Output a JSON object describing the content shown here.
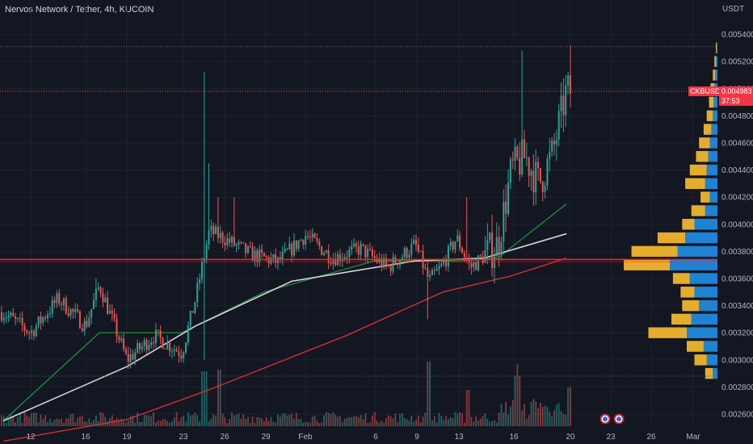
{
  "header": {
    "title": "Nervos Network / Tether, 4h, KUCOIN"
  },
  "axis": {
    "currency": "USDT",
    "y_ticks": [
      "0.005400",
      "0.005200",
      "0.005000",
      "0.004800",
      "0.004600",
      "0.004400",
      "0.004200",
      "0.004000",
      "0.003800",
      "0.003600",
      "0.003400",
      "0.003200",
      "0.003000",
      "0.002800",
      "0.002600"
    ],
    "x_ticks": [
      "12",
      "16",
      "19",
      "23",
      "26",
      "29",
      "Feb",
      "6",
      "9",
      "13",
      "16",
      "20",
      "23",
      "26",
      "Mar"
    ]
  },
  "price_tag": {
    "symbol": "CKBUSDT",
    "price": "0.004983",
    "countdown": "37:53"
  },
  "colors": {
    "background": "#131722",
    "up": "#26a69a",
    "down": "#ef5350",
    "ma_green": "#1b8a34",
    "ma_white": "#d5d5d5",
    "ma_red": "#d32f2f",
    "horizontal_line": "#ff1f1f",
    "vp_up": "#2196f3",
    "vp_down": "#f0b52d",
    "event_icon": "us-flag-icon"
  },
  "chart_data": {
    "type": "candlestick",
    "timeframe": "4h",
    "ylim": [
      0.0025,
      0.0055
    ],
    "x_range": [
      "Jan 10",
      "Mar 2"
    ],
    "anchors": [
      {
        "date": "Jan 10",
        "close": 0.00335
      },
      {
        "date": "Jan 12",
        "close": 0.0032
      },
      {
        "date": "Jan 14",
        "close": 0.00345
      },
      {
        "date": "Jan 16",
        "close": 0.00325
      },
      {
        "date": "Jan 17",
        "close": 0.00355
      },
      {
        "date": "Jan 19",
        "close": 0.003
      },
      {
        "date": "Jan 21",
        "close": 0.00318
      },
      {
        "date": "Jan 23",
        "close": 0.00305
      },
      {
        "date": "Jan 24",
        "close": 0.00345
      },
      {
        "date": "Jan 25",
        "close": 0.00395
      },
      {
        "date": "Jan 26",
        "close": 0.0039
      },
      {
        "date": "Jan 28",
        "close": 0.00378
      },
      {
        "date": "Jan 30",
        "close": 0.00372
      },
      {
        "date": "Feb 1",
        "close": 0.00392
      },
      {
        "date": "Feb 3",
        "close": 0.00375
      },
      {
        "date": "Feb 5",
        "close": 0.00382
      },
      {
        "date": "Feb 7",
        "close": 0.00368
      },
      {
        "date": "Feb 9",
        "close": 0.00385
      },
      {
        "date": "Feb 10",
        "close": 0.00358
      },
      {
        "date": "Feb 11",
        "close": 0.0037
      },
      {
        "date": "Feb 12",
        "close": 0.0039
      },
      {
        "date": "Feb 13",
        "close": 0.00368
      },
      {
        "date": "Feb 15",
        "close": 0.00385
      },
      {
        "date": "Feb 16",
        "close": 0.0044
      },
      {
        "date": "Feb 17",
        "close": 0.0045
      },
      {
        "date": "Feb 18",
        "close": 0.0043
      },
      {
        "date": "Feb 19",
        "close": 0.00452
      },
      {
        "date": "Feb 20",
        "close": 0.00498
      }
    ],
    "moving_averages": [
      {
        "color": "green",
        "points": [
          [
            "Jan 10",
            0.00255
          ],
          [
            "Jan 17",
            0.0032
          ],
          [
            "Jan 23",
            0.0032
          ],
          [
            "Jan 29",
            0.0035
          ],
          [
            "Feb 6",
            0.00373
          ],
          [
            "Feb 12",
            0.00373
          ],
          [
            "Feb 15",
            0.00375
          ],
          [
            "Feb 20",
            0.00415
          ]
        ]
      },
      {
        "color": "white",
        "points": [
          [
            "Jan 10",
            0.00255
          ],
          [
            "Jan 19",
            0.00295
          ],
          [
            "Jan 24",
            0.00325
          ],
          [
            "Jan 31",
            0.00358
          ],
          [
            "Feb 9",
            0.00373
          ],
          [
            "Feb 14",
            0.00375
          ],
          [
            "Feb 20",
            0.00393
          ]
        ]
      },
      {
        "color": "red",
        "points": [
          [
            "Jan 10",
            0.0024
          ],
          [
            "Jan 19",
            0.00256
          ],
          [
            "Jan 25",
            0.00278
          ],
          [
            "Feb 4",
            0.00318
          ],
          [
            "Feb 11",
            0.0035
          ],
          [
            "Feb 16",
            0.00362
          ],
          [
            "Feb 20",
            0.00375
          ]
        ]
      }
    ],
    "horizontal_lines": [
      0.00374,
      0.00531,
      0.00498,
      0.00288
    ],
    "volume_profile": {
      "bin_size": 0.0001,
      "bins": [
        {
          "price": 0.0029,
          "up": 6,
          "down": 10
        },
        {
          "price": 0.003,
          "up": 14,
          "down": 16
        },
        {
          "price": 0.0031,
          "up": 18,
          "down": 22
        },
        {
          "price": 0.0032,
          "up": 40,
          "down": 50
        },
        {
          "price": 0.0033,
          "up": 34,
          "down": 26
        },
        {
          "price": 0.0034,
          "up": 24,
          "down": 22
        },
        {
          "price": 0.0035,
          "up": 30,
          "down": 18
        },
        {
          "price": 0.0036,
          "up": 36,
          "down": 22
        },
        {
          "price": 0.0037,
          "up": 62,
          "down": 60
        },
        {
          "price": 0.0038,
          "up": 52,
          "down": 60
        },
        {
          "price": 0.0039,
          "up": 42,
          "down": 36
        },
        {
          "price": 0.004,
          "up": 30,
          "down": 16
        },
        {
          "price": 0.0041,
          "up": 16,
          "down": 18
        },
        {
          "price": 0.0042,
          "up": 10,
          "down": 12
        },
        {
          "price": 0.0043,
          "up": 16,
          "down": 26
        },
        {
          "price": 0.0044,
          "up": 14,
          "down": 22
        },
        {
          "price": 0.0045,
          "up": 12,
          "down": 16
        },
        {
          "price": 0.0046,
          "up": 10,
          "down": 14
        },
        {
          "price": 0.0047,
          "up": 8,
          "down": 10
        },
        {
          "price": 0.0048,
          "up": 6,
          "down": 8
        },
        {
          "price": 0.0049,
          "up": 5,
          "down": 6
        },
        {
          "price": 0.005,
          "up": 4,
          "down": 5
        },
        {
          "price": 0.0051,
          "up": 3,
          "down": 3
        },
        {
          "price": 0.0052,
          "up": 2,
          "down": 2
        },
        {
          "price": 0.0053,
          "up": 1,
          "down": 1
        }
      ]
    },
    "events": [
      "Feb 23",
      "Feb 24"
    ]
  }
}
